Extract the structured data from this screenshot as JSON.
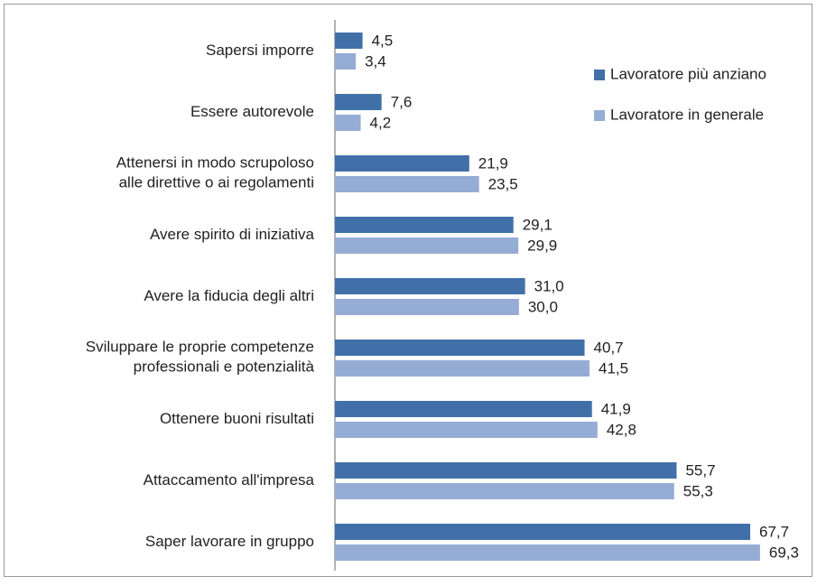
{
  "chart_data": {
    "type": "barh",
    "categories": [
      "Sapersi imporre",
      "Essere autorevole",
      "Attenersi in modo scrupoloso\nalle direttive o ai regolamenti",
      "Avere spirito di iniziativa",
      "Avere la fiducia degli altri",
      "Sviluppare  le proprie competenze\nprofessionali e potenzialità",
      "Ottenere buoni risultati",
      "Attaccamento all'impresa",
      "Saper lavorare in gruppo"
    ],
    "series": [
      {
        "name": "Lavoratore più anziano",
        "color": "#4170a8",
        "values": [
          4.5,
          7.6,
          21.9,
          29.1,
          31.0,
          40.7,
          41.9,
          55.7,
          67.7
        ],
        "value_labels": [
          "4,5",
          "7,6",
          "21,9",
          "29,1",
          "31,0",
          "40,7",
          "41,9",
          "55,7",
          "67,7"
        ]
      },
      {
        "name": "Lavoratore in generale",
        "color": "#95acd4",
        "values": [
          3.4,
          4.2,
          23.5,
          29.9,
          30.0,
          41.5,
          42.8,
          55.3,
          69.3
        ],
        "value_labels": [
          "3,4",
          "4,2",
          "23,5",
          "29,9",
          "30,0",
          "41,5",
          "42,8",
          "55,3",
          "69,3"
        ]
      }
    ],
    "xlim": [
      0,
      78
    ],
    "legend": "upper right"
  }
}
